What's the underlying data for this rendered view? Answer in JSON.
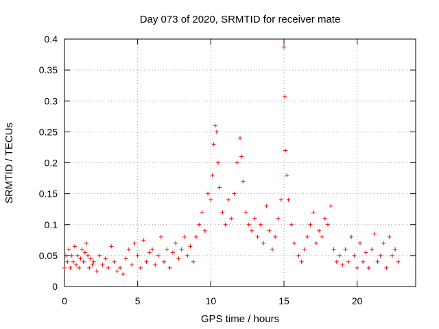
{
  "chart_data": {
    "type": "scatter",
    "title": "Day 073 of 2020, SRMTID for receiver mate",
    "xlabel": "GPS time / hours",
    "ylabel": "SRMTID / TECUs",
    "xlim": [
      0,
      24
    ],
    "ylim": [
      0,
      0.4
    ],
    "xticks": [
      0,
      5,
      10,
      15,
      20
    ],
    "xtick_labels": [
      "0",
      "5",
      "10",
      "15",
      "20"
    ],
    "yticks": [
      0,
      0.05,
      0.1,
      0.15,
      0.2,
      0.25,
      0.3,
      0.35,
      0.4
    ],
    "ytick_labels": [
      "0",
      "0.05",
      "0.1",
      "0.15",
      "0.2",
      "0.25",
      "0.3",
      "0.35",
      "0.4"
    ],
    "grid": true,
    "marker": "plus",
    "color": "#ff0000",
    "series": [
      {
        "name": "SRMTID",
        "points": [
          [
            0.0,
            0.03
          ],
          [
            0.1,
            0.05
          ],
          [
            0.2,
            0.04
          ],
          [
            0.3,
            0.06
          ],
          [
            0.4,
            0.03
          ],
          [
            0.5,
            0.05
          ],
          [
            0.6,
            0.04
          ],
          [
            0.7,
            0.065
          ],
          [
            0.8,
            0.035
          ],
          [
            0.9,
            0.05
          ],
          [
            1.0,
            0.03
          ],
          [
            1.1,
            0.045
          ],
          [
            1.2,
            0.06
          ],
          [
            1.3,
            0.04
          ],
          [
            1.4,
            0.055
          ],
          [
            1.5,
            0.07
          ],
          [
            1.6,
            0.05
          ],
          [
            1.7,
            0.03
          ],
          [
            1.8,
            0.045
          ],
          [
            1.9,
            0.035
          ],
          [
            2.0,
            0.04
          ],
          [
            2.2,
            0.025
          ],
          [
            2.4,
            0.05
          ],
          [
            2.6,
            0.035
          ],
          [
            2.8,
            0.045
          ],
          [
            3.0,
            0.03
          ],
          [
            3.2,
            0.065
          ],
          [
            3.4,
            0.04
          ],
          [
            3.6,
            0.025
          ],
          [
            3.8,
            0.03
          ],
          [
            4.0,
            0.02
          ],
          [
            4.2,
            0.045
          ],
          [
            4.4,
            0.06
          ],
          [
            4.6,
            0.035
          ],
          [
            4.8,
            0.07
          ],
          [
            5.0,
            0.05
          ],
          [
            5.2,
            0.03
          ],
          [
            5.4,
            0.075
          ],
          [
            5.6,
            0.04
          ],
          [
            5.8,
            0.055
          ],
          [
            6.0,
            0.06
          ],
          [
            6.2,
            0.035
          ],
          [
            6.4,
            0.05
          ],
          [
            6.6,
            0.08
          ],
          [
            6.8,
            0.04
          ],
          [
            7.0,
            0.06
          ],
          [
            7.2,
            0.03
          ],
          [
            7.4,
            0.055
          ],
          [
            7.6,
            0.07
          ],
          [
            7.8,
            0.045
          ],
          [
            8.0,
            0.06
          ],
          [
            8.2,
            0.08
          ],
          [
            8.4,
            0.05
          ],
          [
            8.6,
            0.065
          ],
          [
            8.8,
            0.04
          ],
          [
            9.0,
            0.08
          ],
          [
            9.2,
            0.1
          ],
          [
            9.4,
            0.12
          ],
          [
            9.6,
            0.09
          ],
          [
            9.8,
            0.15
          ],
          [
            10.0,
            0.14
          ],
          [
            10.1,
            0.18
          ],
          [
            10.2,
            0.23
          ],
          [
            10.3,
            0.26
          ],
          [
            10.4,
            0.25
          ],
          [
            10.5,
            0.2
          ],
          [
            10.6,
            0.16
          ],
          [
            10.8,
            0.12
          ],
          [
            11.0,
            0.1
          ],
          [
            11.2,
            0.14
          ],
          [
            11.4,
            0.11
          ],
          [
            11.6,
            0.15
          ],
          [
            11.8,
            0.2
          ],
          [
            12.0,
            0.24
          ],
          [
            12.1,
            0.21
          ],
          [
            12.2,
            0.17
          ],
          [
            12.4,
            0.12
          ],
          [
            12.6,
            0.1
          ],
          [
            12.8,
            0.09
          ],
          [
            13.0,
            0.11
          ],
          [
            13.2,
            0.08
          ],
          [
            13.4,
            0.1
          ],
          [
            13.6,
            0.07
          ],
          [
            13.8,
            0.13
          ],
          [
            14.0,
            0.09
          ],
          [
            14.2,
            0.06
          ],
          [
            14.4,
            0.08
          ],
          [
            14.6,
            0.11
          ],
          [
            14.8,
            0.14
          ],
          [
            15.0,
            0.387
          ],
          [
            15.05,
            0.307
          ],
          [
            15.1,
            0.22
          ],
          [
            15.2,
            0.18
          ],
          [
            15.3,
            0.14
          ],
          [
            15.5,
            0.1
          ],
          [
            15.7,
            0.07
          ],
          [
            16.0,
            0.05
          ],
          [
            16.2,
            0.04
          ],
          [
            16.4,
            0.06
          ],
          [
            16.6,
            0.08
          ],
          [
            16.8,
            0.1
          ],
          [
            17.0,
            0.12
          ],
          [
            17.2,
            0.07
          ],
          [
            17.4,
            0.09
          ],
          [
            17.6,
            0.08
          ],
          [
            17.8,
            0.11
          ],
          [
            18.0,
            0.1
          ],
          [
            18.2,
            0.13
          ],
          [
            18.4,
            0.06
          ],
          [
            18.6,
            0.04
          ],
          [
            18.8,
            0.05
          ],
          [
            19.0,
            0.035
          ],
          [
            19.2,
            0.06
          ],
          [
            19.4,
            0.04
          ],
          [
            19.6,
            0.08
          ],
          [
            19.8,
            0.05
          ],
          [
            20.0,
            0.03
          ],
          [
            20.2,
            0.07
          ],
          [
            20.4,
            0.04
          ],
          [
            20.6,
            0.055
          ],
          [
            20.8,
            0.03
          ],
          [
            21.0,
            0.06
          ],
          [
            21.2,
            0.085
          ],
          [
            21.4,
            0.04
          ],
          [
            21.6,
            0.05
          ],
          [
            21.8,
            0.07
          ],
          [
            22.0,
            0.03
          ],
          [
            22.2,
            0.08
          ],
          [
            22.4,
            0.05
          ],
          [
            22.6,
            0.06
          ],
          [
            22.8,
            0.04
          ]
        ]
      }
    ]
  }
}
